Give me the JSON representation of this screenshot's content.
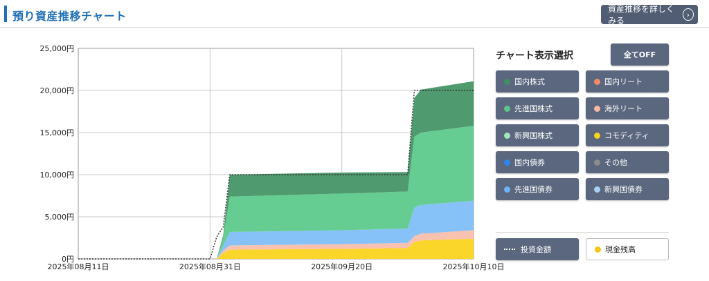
{
  "header": {
    "title": "預り資産推移チャート",
    "detail_button": "資産推移を詳しくみる",
    "detail_icon": "chevron-right-circle-icon"
  },
  "panel": {
    "title": "チャート表示選択",
    "all_off": "全てOFF",
    "buttons": [
      {
        "label": "国内株式",
        "color": "#3f8f63"
      },
      {
        "label": "国内リート",
        "color": "#f58a6b"
      },
      {
        "label": "先進国株式",
        "color": "#5ec48c"
      },
      {
        "label": "海外リート",
        "color": "#f5b8a6"
      },
      {
        "label": "新興国株式",
        "color": "#a6e3c1"
      },
      {
        "label": "コモディティ",
        "color": "#f5d31a"
      },
      {
        "label": "国内債券",
        "color": "#2f86f0"
      },
      {
        "label": "その他",
        "color": "#8c8c8c"
      },
      {
        "label": "先進国債券",
        "color": "#6fb3f7"
      },
      {
        "label": "新興国債券",
        "color": "#a8d0f7"
      }
    ],
    "investment_label": "投資金額",
    "cash_label": "現金残高",
    "cash_color": "#f5c518"
  },
  "chart_data": {
    "type": "area",
    "stacked": true,
    "x_tick_labels": [
      "2025年08月11日",
      "2025年08月31日",
      "2025年09月20日",
      "2025年10月10日"
    ],
    "y_tick_labels": [
      "0円",
      "5,000円",
      "10,000円",
      "15,000円",
      "20,000円",
      "25,000円"
    ],
    "ylim": [
      0,
      25000
    ],
    "grid": true,
    "x_day_offsets": [
      0,
      20,
      21,
      22,
      23,
      40,
      50,
      51,
      52,
      60
    ],
    "series": [
      {
        "name": "現金残高",
        "color": "#fad52a",
        "values": [
          0,
          0,
          0,
          700,
          1100,
          1200,
          1300,
          2000,
          2200,
          2400
        ]
      },
      {
        "name": "海外リート",
        "color": "#f9c1b0",
        "values": [
          0,
          0,
          0,
          300,
          500,
          550,
          600,
          700,
          800,
          1000
        ]
      },
      {
        "name": "先進国債券",
        "color": "#86c2f8",
        "values": [
          0,
          0,
          0,
          600,
          1600,
          1650,
          1700,
          3400,
          3400,
          3500
        ]
      },
      {
        "name": "先進国株式",
        "color": "#66cd92",
        "values": [
          0,
          0,
          0,
          900,
          4200,
          4350,
          4400,
          8400,
          8600,
          8900
        ]
      },
      {
        "name": "国内株式",
        "color": "#4f9a6f",
        "values": [
          0,
          0,
          0,
          300,
          2600,
          2500,
          2300,
          4600,
          5100,
          5300
        ]
      }
    ],
    "investment_line": {
      "name": "投資金額",
      "values": [
        0,
        0,
        2600,
        3800,
        10000,
        10000,
        10000,
        20000,
        20000,
        20000
      ]
    }
  }
}
